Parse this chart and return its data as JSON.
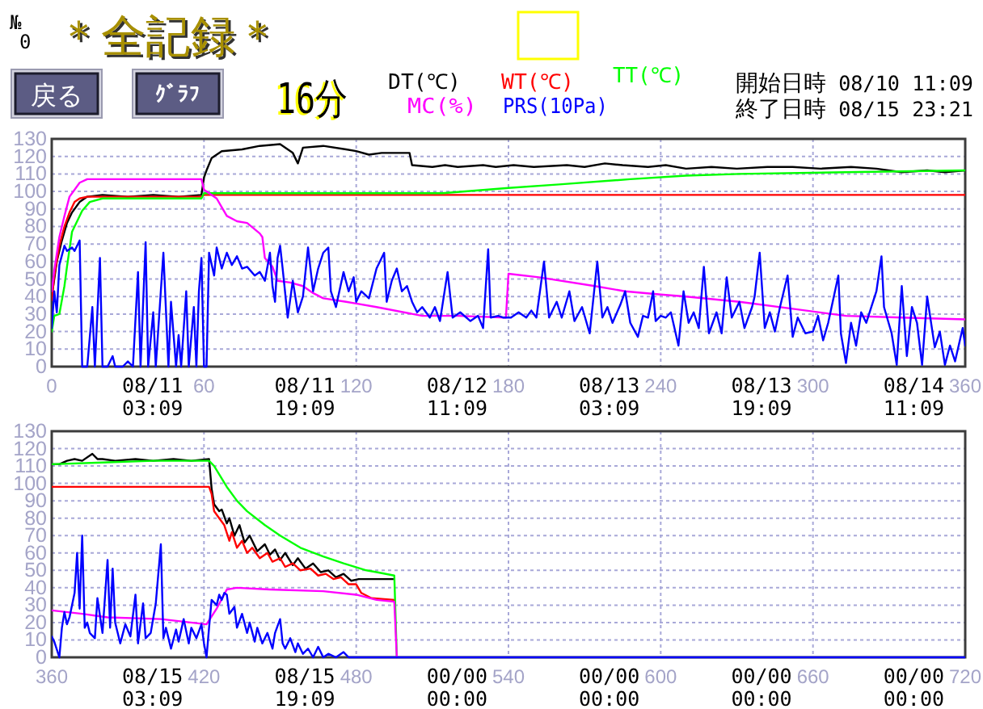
{
  "chart_data": [
    {
      "type": "line",
      "title": "＊全記録＊",
      "annotations": [
        "№",
        "0",
        "戻る",
        "ｸﾞﾗﾌ",
        "16分",
        "開始日時 08/10 11:09",
        "終了日時 08/15 23:21",
        "08/11 03:09",
        "08/11 19:09",
        "08/12 11:09",
        "08/13 03:09",
        "08/13 19:09",
        "08/14 11:09"
      ],
      "xlim": [
        0,
        360
      ],
      "xticks": [
        0,
        60,
        120,
        180,
        240,
        300,
        360
      ],
      "ylim": [
        0,
        130
      ],
      "yticks": [
        0,
        10,
        20,
        30,
        40,
        50,
        60,
        70,
        80,
        90,
        100,
        110,
        120,
        130
      ],
      "grid": true,
      "legend": "top",
      "series": [
        {
          "name": "DT(℃)",
          "color": "#000000",
          "x": [
            0,
            2,
            4,
            6,
            8,
            11,
            14,
            20,
            30,
            40,
            50,
            59,
            60,
            61,
            63,
            67,
            75,
            82,
            90,
            95,
            97,
            99,
            107,
            116,
            120,
            125,
            130,
            141,
            142,
            150,
            155,
            160,
            170,
            175,
            182,
            190,
            203,
            210,
            218,
            225,
            235,
            242,
            250,
            260,
            270,
            282,
            292,
            303,
            315,
            325,
            335,
            345,
            352,
            360
          ],
          "values": [
            40,
            60,
            72,
            82,
            88,
            94,
            97,
            98,
            97,
            98,
            97,
            98,
            108,
            112,
            119,
            123,
            124,
            126,
            127,
            122,
            116,
            125,
            126,
            124,
            123,
            121,
            122,
            122,
            115,
            114,
            115,
            114,
            115,
            114,
            115,
            114,
            115,
            114,
            116,
            115,
            114,
            115,
            113,
            114,
            113,
            114,
            114,
            113,
            114,
            113,
            111,
            112,
            111,
            112
          ]
        },
        {
          "name": "WT(℃)",
          "color": "#ff0000",
          "x": [
            0,
            1,
            3,
            5,
            7,
            9,
            11,
            14,
            59,
            60,
            360
          ],
          "values": [
            38,
            52,
            69,
            80,
            88,
            94,
            96,
            97,
            97,
            98,
            98
          ]
        },
        {
          "name": "TT(℃)",
          "color": "#00ff00",
          "x": [
            0,
            1,
            3,
            5,
            6,
            8,
            12,
            15,
            20,
            59,
            60,
            154,
            180,
            200,
            228,
            250,
            271,
            313,
            360
          ],
          "values": [
            20,
            29,
            30,
            46,
            57,
            77,
            89,
            94,
            96,
            96,
            99,
            99,
            102,
            104,
            107,
            109,
            110,
            111,
            112
          ]
        },
        {
          "name": "MC(%)",
          "color": "#ff00ff",
          "x": [
            0,
            1,
            3,
            5,
            7,
            11,
            14,
            59,
            60,
            62,
            65,
            69,
            73,
            77,
            82,
            83,
            84,
            87,
            89,
            94,
            99,
            103,
            107,
            116,
            120,
            128,
            146,
            160,
            179,
            180,
            192,
            214,
            226,
            241,
            250,
            271,
            292,
            313,
            335,
            360
          ],
          "values": [
            43,
            55,
            74,
            86,
            97,
            105,
            107,
            107,
            101,
            99,
            96,
            86,
            83,
            82,
            76,
            74,
            62,
            57,
            49,
            48,
            46,
            42,
            39,
            37,
            36,
            34,
            29,
            29,
            28,
            53,
            51,
            46,
            43,
            41,
            40,
            37,
            33,
            29,
            28,
            27
          ]
        },
        {
          "name": "PRS(10Pa)",
          "color": "#0000ff",
          "x": [
            0,
            1,
            2,
            3,
            5,
            6,
            8,
            9,
            11,
            12,
            14,
            16,
            17,
            18,
            19,
            20,
            22,
            24,
            25,
            28,
            30,
            32,
            34,
            35,
            37,
            38,
            40,
            41,
            44,
            46,
            47,
            49,
            50,
            51,
            53,
            54,
            56,
            57,
            58,
            59,
            60,
            61,
            62,
            64,
            65,
            67,
            69,
            71,
            73,
            75,
            77,
            80,
            82,
            84,
            86,
            87,
            88,
            89,
            90,
            91,
            93,
            95,
            97,
            99,
            101,
            103,
            105,
            107,
            109,
            110,
            112,
            115,
            117,
            119,
            120,
            122,
            125,
            128,
            131,
            132,
            134,
            136,
            138,
            140,
            142,
            144,
            146,
            149,
            151,
            153,
            156,
            158,
            161,
            165,
            168,
            170,
            172,
            173,
            176,
            178,
            181,
            184,
            187,
            189,
            191,
            194,
            196,
            199,
            201,
            204,
            206,
            209,
            212,
            215,
            217,
            219,
            221,
            224,
            226,
            228,
            231,
            233,
            235,
            237,
            238,
            240,
            242,
            244,
            247,
            249,
            251,
            253,
            255,
            257,
            259,
            262,
            264,
            266,
            268,
            271,
            273,
            276,
            277,
            279,
            281,
            283,
            285,
            287,
            290,
            292,
            294,
            297,
            300,
            302,
            304,
            306,
            310,
            311,
            313,
            315,
            317,
            319,
            321,
            323,
            325,
            327,
            328,
            331,
            333,
            335,
            337,
            339,
            341,
            343,
            345,
            348,
            350,
            352,
            354,
            356,
            359,
            360
          ],
          "values": [
            22,
            43,
            31,
            58,
            69,
            66,
            68,
            66,
            72,
            0,
            0,
            34,
            0,
            31,
            62,
            0,
            0,
            6,
            0,
            0,
            3,
            0,
            54,
            0,
            71,
            0,
            31,
            0,
            65,
            0,
            37,
            0,
            18,
            0,
            43,
            0,
            34,
            0,
            43,
            62,
            0,
            0,
            65,
            52,
            68,
            56,
            65,
            58,
            63,
            56,
            57,
            52,
            54,
            49,
            65,
            46,
            37,
            62,
            69,
            56,
            28,
            49,
            31,
            40,
            68,
            43,
            56,
            65,
            68,
            43,
            34,
            54,
            43,
            51,
            37,
            43,
            39,
            56,
            65,
            37,
            49,
            56,
            43,
            46,
            37,
            31,
            34,
            28,
            34,
            26,
            54,
            28,
            31,
            26,
            29,
            22,
            67,
            28,
            29,
            28,
            28,
            31,
            28,
            32,
            28,
            60,
            28,
            37,
            28,
            43,
            26,
            34,
            19,
            60,
            28,
            34,
            25,
            35,
            43,
            25,
            17,
            29,
            28,
            43,
            26,
            29,
            28,
            31,
            12,
            43,
            25,
            31,
            22,
            57,
            19,
            31,
            19,
            51,
            28,
            37,
            22,
            34,
            40,
            65,
            22,
            31,
            20,
            34,
            52,
            17,
            28,
            19,
            20,
            29,
            15,
            25,
            52,
            19,
            2,
            25,
            12,
            31,
            25,
            34,
            43,
            63,
            34,
            19,
            1,
            46,
            6,
            34,
            25,
            1,
            40,
            11,
            20,
            1,
            12,
            3,
            22,
            12
          ]
        }
      ]
    },
    {
      "type": "line",
      "annotations": [
        "08/15 03:09",
        "08/15 19:09",
        "00/00 00:00",
        "00/00 00:00",
        "00/00 00:00",
        "00/00 00:00"
      ],
      "xlim": [
        360,
        720
      ],
      "xticks": [
        360,
        420,
        480,
        540,
        600,
        660,
        720
      ],
      "ylim": [
        0,
        130
      ],
      "yticks": [
        0,
        10,
        20,
        30,
        40,
        50,
        60,
        70,
        80,
        90,
        100,
        110,
        120,
        130
      ],
      "grid": true,
      "series": [
        {
          "color": "#000000",
          "x": [
            360,
            363,
            366,
            369,
            372,
            376,
            378,
            380,
            385,
            393,
            400,
            408,
            415,
            422,
            423,
            424,
            426,
            427,
            429,
            430,
            432,
            434,
            436,
            438,
            441,
            444,
            446,
            448,
            450,
            452,
            455,
            457,
            460,
            463,
            466,
            469,
            472,
            475,
            478,
            481,
            495
          ],
          "values": [
            111,
            111,
            113,
            114,
            113,
            117,
            114,
            114,
            113,
            114,
            113,
            114,
            113,
            114,
            97,
            88,
            84,
            85,
            77,
            80,
            70,
            76,
            66,
            70,
            61,
            65,
            59,
            62,
            56,
            60,
            53,
            57,
            51,
            54,
            49,
            50,
            46,
            48,
            44,
            45,
            45
          ]
        },
        {
          "color": "#ff0000",
          "x": [
            360,
            422,
            423,
            424,
            426,
            428,
            430,
            431,
            433,
            435,
            437,
            439,
            442,
            445,
            447,
            450,
            452,
            455,
            458,
            462,
            465,
            468,
            471,
            474,
            477,
            480,
            482,
            486,
            495
          ],
          "values": [
            98,
            98,
            94,
            84,
            80,
            76,
            67,
            72,
            63,
            67,
            60,
            63,
            57,
            60,
            55,
            57,
            52,
            54,
            50,
            51,
            47,
            48,
            45,
            46,
            42,
            42,
            37,
            34,
            33
          ]
        },
        {
          "color": "#00ff00",
          "x": [
            360,
            380,
            400,
            422,
            424,
            429,
            433,
            437,
            444,
            450,
            458,
            467,
            475,
            484,
            488,
            495,
            496
          ],
          "values": [
            111,
            112,
            113,
            113,
            110,
            98,
            90,
            84,
            76,
            70,
            63,
            58,
            54,
            50,
            49,
            47,
            0
          ]
        },
        {
          "color": "#ff00ff",
          "x": [
            360,
            372,
            382,
            403,
            421,
            425,
            429,
            433,
            446,
            467,
            480,
            488,
            495,
            496
          ],
          "values": [
            27,
            25,
            23,
            22,
            19,
            28,
            39,
            40,
            39,
            38,
            36,
            33,
            32,
            0
          ]
        },
        {
          "color": "#0000ff",
          "x": [
            360,
            361,
            363,
            364,
            365,
            366,
            367,
            369,
            370,
            371,
            372,
            373,
            374,
            375,
            377,
            378,
            380,
            382,
            383,
            384,
            385,
            387,
            389,
            391,
            393,
            394,
            396,
            397,
            399,
            401,
            403,
            404,
            405,
            407,
            409,
            410,
            412,
            414,
            415,
            417,
            419,
            420,
            421,
            422,
            423,
            425,
            426,
            427,
            428,
            429,
            430,
            432,
            433,
            435,
            437,
            438,
            440,
            441,
            443,
            445,
            447,
            448,
            450,
            451,
            452,
            454,
            456,
            457,
            459,
            461,
            463,
            465,
            467,
            469,
            472,
            475,
            477,
            720
          ],
          "values": [
            12,
            9,
            0,
            17,
            26,
            19,
            23,
            37,
            60,
            28,
            70,
            17,
            20,
            14,
            11,
            34,
            14,
            56,
            17,
            51,
            20,
            8,
            19,
            12,
            36,
            8,
            31,
            11,
            14,
            31,
            65,
            11,
            17,
            5,
            16,
            9,
            22,
            8,
            17,
            11,
            19,
            8,
            0,
            17,
            33,
            30,
            36,
            33,
            37,
            36,
            25,
            29,
            17,
            25,
            14,
            20,
            9,
            17,
            8,
            14,
            5,
            14,
            22,
            8,
            5,
            11,
            3,
            8,
            2,
            5,
            0,
            6,
            0,
            2,
            0,
            3,
            0,
            0
          ]
        }
      ]
    }
  ]
}
